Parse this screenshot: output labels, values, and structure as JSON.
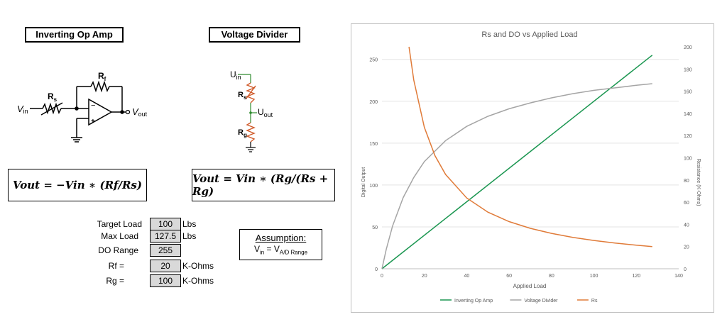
{
  "left": {
    "inverting_title": "Inverting Op Amp",
    "divider_title": "Voltage Divider",
    "circuit1": {
      "rf": "R",
      "rf_sub": "f",
      "rs": "R",
      "rs_sub": "s",
      "vin": "V",
      "vin_sub": "in",
      "vout": "V",
      "vout_sub": "out",
      "minus": "−",
      "plus": "+"
    },
    "circuit2": {
      "uin": "U",
      "uin_sub": "in",
      "rs": "R",
      "rs_sub": "s",
      "uout": "U",
      "uout_sub": "out",
      "rg": "R",
      "rg_sub": "g"
    },
    "equation1": "Vout = −Vin ∗ (Rf/Rs)",
    "equation2": "Vout = Vin ∗ (Rg/(Rs + Rg)",
    "params": [
      {
        "label": "Target Load",
        "value": "100",
        "unit": "Lbs"
      },
      {
        "label": "Max Load",
        "value": "127.5",
        "unit": "Lbs"
      },
      {
        "label": "DO Range",
        "value": "255",
        "unit": ""
      },
      {
        "label": "Rf =",
        "value": "20",
        "unit": "K-Ohms"
      },
      {
        "label": "Rg =",
        "value": "100",
        "unit": "K-Ohms"
      }
    ],
    "assumption": {
      "title": "Assumption:",
      "lhs": "V",
      "lhs_sub": "in",
      "eq": " = V",
      "rhs_sub": "A/D Range"
    },
    "colors": {
      "resistor": "#d05a2a",
      "wire_green": "#2e8b2e"
    }
  },
  "chart_data": {
    "type": "line",
    "title": "Rs and DO vs Applied Load",
    "xlabel": "Applied Load",
    "ylabel": "Digital Output",
    "y2label": "Resistance (K-Ohms)",
    "xlim": [
      0,
      140
    ],
    "xticks": [
      0,
      20,
      40,
      60,
      80,
      100,
      120,
      140
    ],
    "ylim": [
      0,
      265
    ],
    "yticks": [
      0,
      50,
      100,
      150,
      200,
      250
    ],
    "y2lim": [
      0,
      200
    ],
    "y2ticks": [
      0,
      20,
      40,
      60,
      80,
      100,
      120,
      140,
      160,
      180,
      200
    ],
    "grid": "horizontal",
    "legend_position": "bottom",
    "series": [
      {
        "name": "Inverting Op Amp",
        "color": "#1a9650",
        "axis": "left",
        "x": [
          0,
          127.5
        ],
        "y": [
          0,
          255
        ]
      },
      {
        "name": "Voltage Divider",
        "color": "#a5a5a5",
        "axis": "left",
        "x": [
          0,
          2,
          5,
          10,
          15,
          20,
          30,
          40,
          50,
          60,
          70,
          80,
          90,
          100,
          110,
          120,
          127.5
        ],
        "y": [
          0,
          23,
          51,
          85,
          109,
          128,
          153,
          170,
          182,
          191,
          198,
          204,
          209,
          213,
          216,
          219,
          221
        ]
      },
      {
        "name": "Rs",
        "color": "#e07b39",
        "axis": "right",
        "x": [
          12.75,
          15,
          20,
          25,
          30,
          40,
          50,
          60,
          70,
          80,
          90,
          100,
          110,
          120,
          127.5
        ],
        "y": [
          200,
          170,
          127.5,
          102,
          85,
          63.8,
          51,
          42.5,
          36.4,
          31.9,
          28.3,
          25.5,
          23.2,
          21.3,
          20
        ]
      }
    ]
  }
}
